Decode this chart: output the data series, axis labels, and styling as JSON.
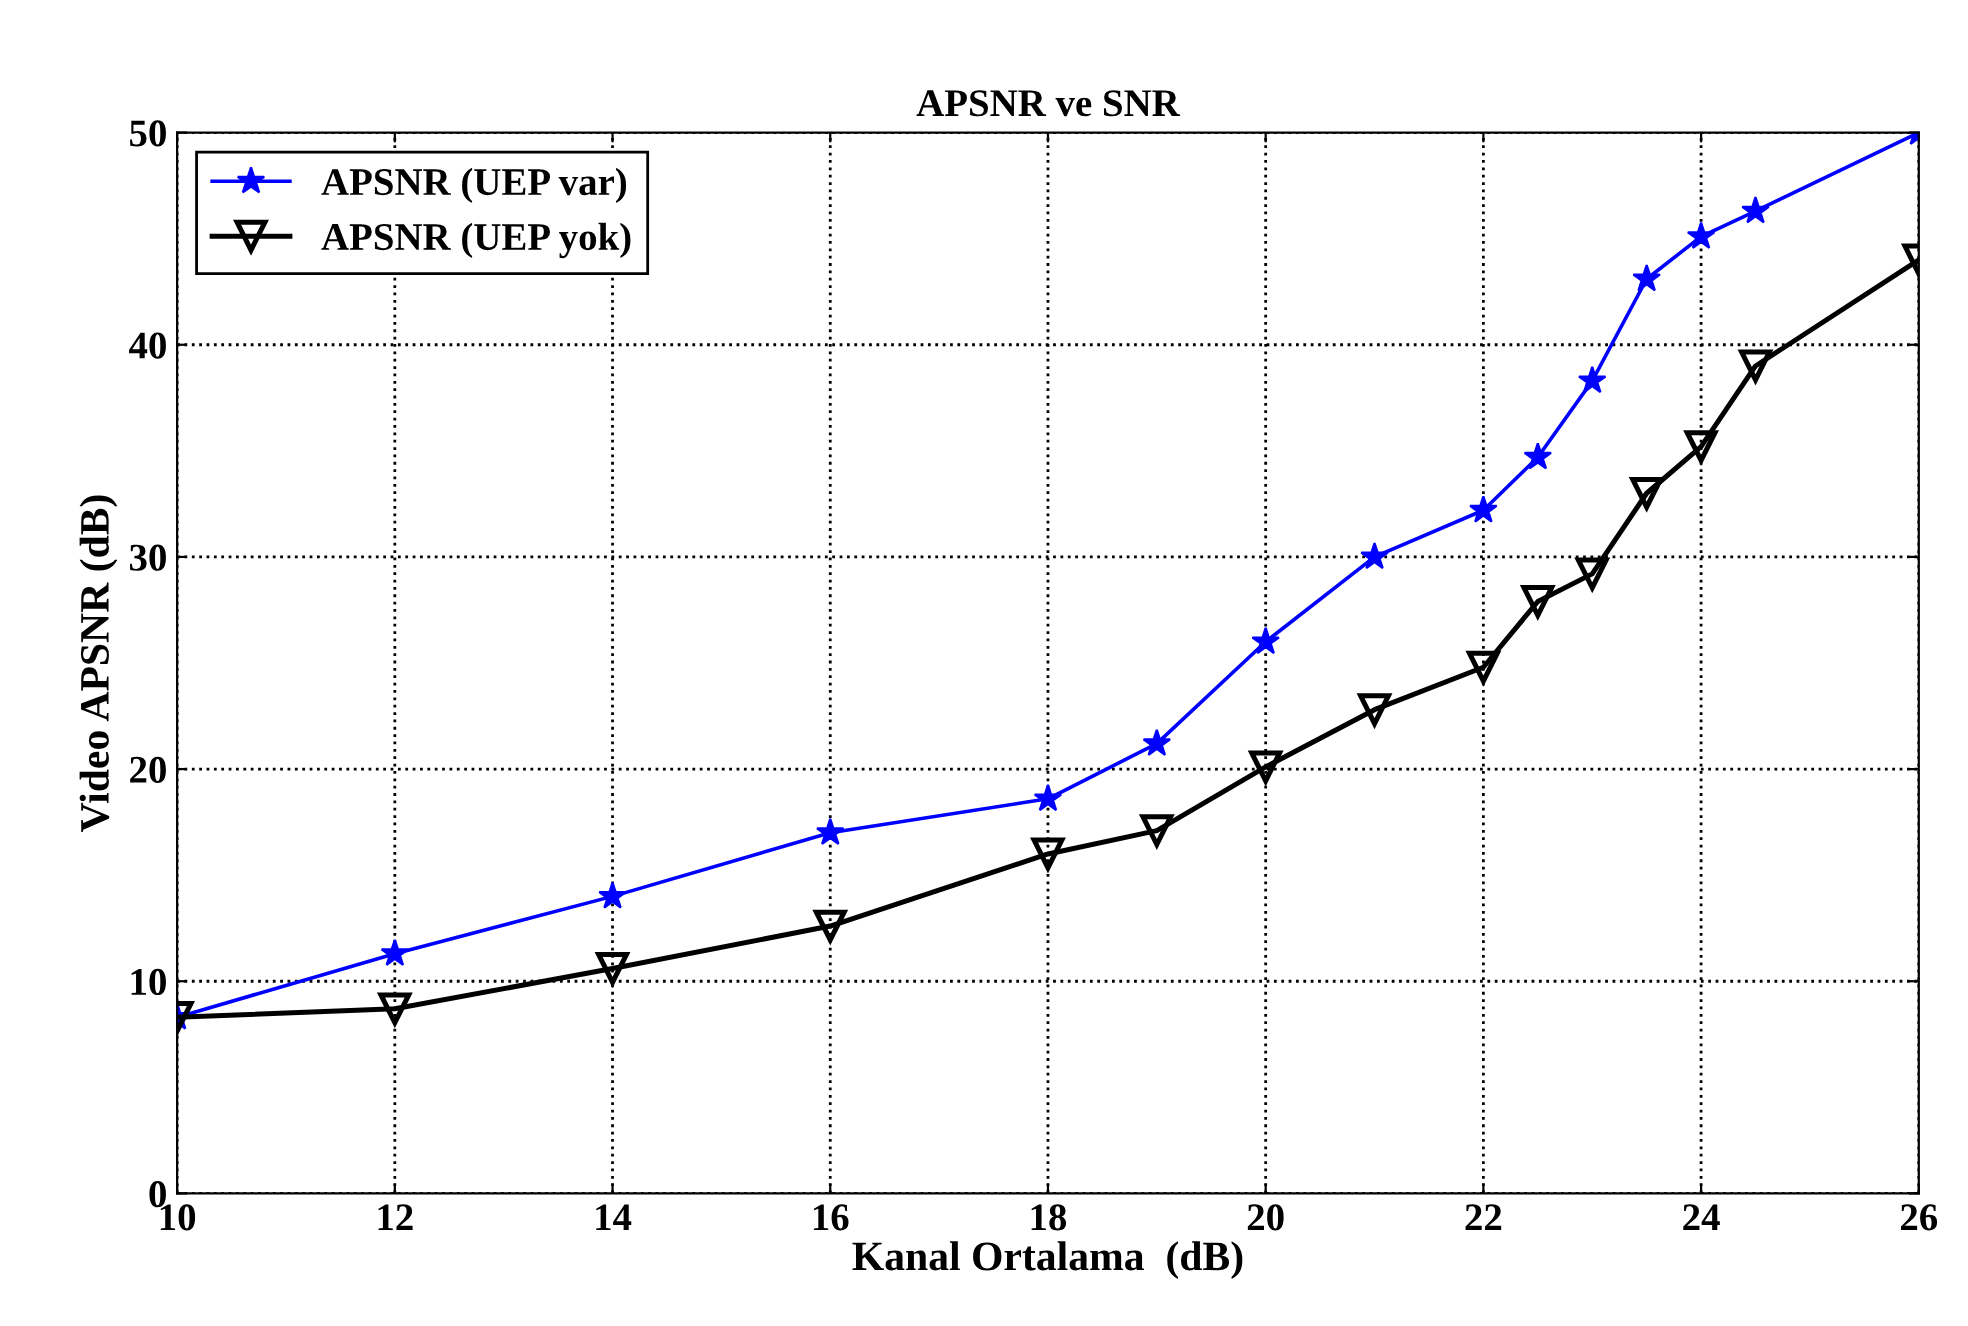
{
  "chart_data": {
    "type": "line",
    "title": "APSNR ve SNR",
    "xlabel": "Kanal Ortalama  (dB)",
    "ylabel": "Video APSNR (dB)",
    "x": [
      10,
      12,
      14,
      16,
      18,
      19,
      20,
      21,
      22,
      22.5,
      23,
      23.5,
      24,
      24.5,
      26
    ],
    "series": [
      {
        "name": "APSNR (UEP var)",
        "color": "#0000ff",
        "marker": "star",
        "values": [
          8.3,
          11.3,
          14.0,
          17.0,
          18.6,
          21.2,
          26.0,
          30.0,
          32.2,
          34.7,
          38.3,
          43.1,
          45.1,
          46.3,
          50.0
        ]
      },
      {
        "name": "APSNR (UEP yok)",
        "color": "#000000",
        "marker": "triangle",
        "values": [
          8.3,
          8.7,
          10.6,
          12.6,
          16.0,
          17.1,
          20.1,
          22.8,
          24.8,
          27.9,
          29.2,
          33.0,
          35.2,
          39.0,
          44.0
        ]
      }
    ],
    "xlim": [
      10,
      26
    ],
    "xticks": [
      10,
      12,
      14,
      16,
      18,
      20,
      22,
      24,
      26
    ],
    "ylim": [
      0,
      50
    ],
    "yticks": [
      0,
      10,
      20,
      30,
      40,
      50
    ],
    "grid": true,
    "legend": "top left",
    "line_style": "solid"
  }
}
